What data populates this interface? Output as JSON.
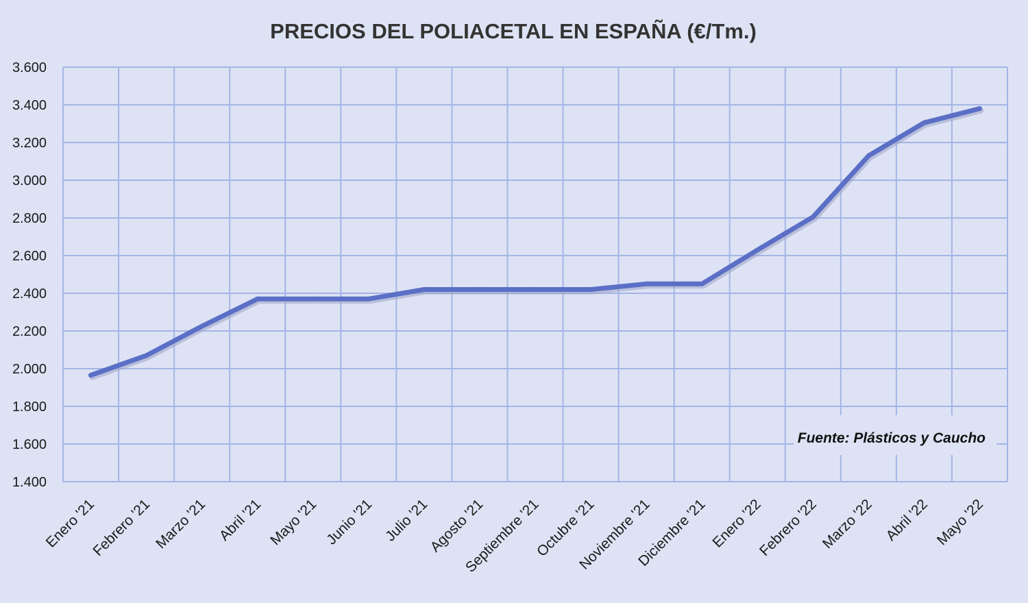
{
  "chart_data": {
    "type": "line",
    "title": "PRECIOS DEL POLIACETAL  EN ESPAÑA (€/Tm.)",
    "xlabel": "",
    "ylabel": "",
    "ylim": [
      1400,
      3600
    ],
    "yticks": [
      1400,
      1600,
      1800,
      2000,
      2200,
      2400,
      2600,
      2800,
      3000,
      3200,
      3400,
      3600
    ],
    "ytick_labels": [
      "1.400",
      "1.600",
      "1.800",
      "2.000",
      "2.200",
      "2.400",
      "2.600",
      "2.800",
      "3.000",
      "3.200",
      "3.400",
      "3.600"
    ],
    "categories": [
      "Enero '21",
      "Febrero '21",
      "Marzo '21",
      "Abril '21",
      "Mayo '21",
      "Junio '21",
      "Julio '21",
      "Agosto '21",
      "Septiembre '21",
      "Octubre '21",
      "Noviembre '21",
      "Diciembre '21",
      "Enero '22",
      "Febrero '22",
      "Marzo '22",
      "Abril '22",
      "Mayo '22"
    ],
    "series": [
      {
        "values": [
          1965,
          2070,
          2225,
          2370,
          2370,
          2370,
          2420,
          2420,
          2420,
          2420,
          2450,
          2450,
          2630,
          2805,
          3130,
          3305,
          3380
        ]
      }
    ],
    "grid": true,
    "legend": "none",
    "line_color": "#5b6fc6",
    "grid_color": "#a4b4e6",
    "background_color": "#dde3f4",
    "annotation": "Fuente: Plásticos y Caucho"
  }
}
